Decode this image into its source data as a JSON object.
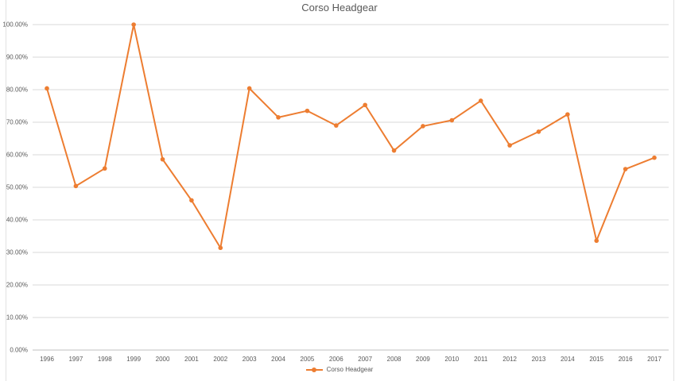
{
  "chart_data": {
    "type": "line",
    "title": "Corso Headgear",
    "categories": [
      "1996",
      "1997",
      "1998",
      "1999",
      "2000",
      "2001",
      "2002",
      "2003",
      "2004",
      "2005",
      "2006",
      "2007",
      "2008",
      "2009",
      "2010",
      "2011",
      "2012",
      "2013",
      "2014",
      "2015",
      "2016",
      "2017"
    ],
    "series": [
      {
        "name": "Corso Headgear",
        "values": [
          80.4,
          50.4,
          55.8,
          100.0,
          58.6,
          46.0,
          31.4,
          80.4,
          71.5,
          73.5,
          69.0,
          75.3,
          61.3,
          68.8,
          70.6,
          76.6,
          62.9,
          67.1,
          72.4,
          33.6,
          55.6,
          59.1
        ]
      }
    ],
    "xlabel": "",
    "ylabel": "",
    "ylim": [
      0,
      100
    ],
    "y_tick_labels": [
      "0.00%",
      "10.00%",
      "20.00%",
      "30.00%",
      "40.00%",
      "50.00%",
      "60.00%",
      "70.00%",
      "80.00%",
      "90.00%",
      "100.00%"
    ],
    "grid": true,
    "legend_position": "bottom"
  },
  "colors": {
    "series": "#ED7D31",
    "gridline": "#D9D9D9",
    "axis_line": "#BFBFBF",
    "label_text": "#595959",
    "title_text": "#595959",
    "chart_border": "#E2E2E2",
    "background": "#FFFFFF"
  }
}
